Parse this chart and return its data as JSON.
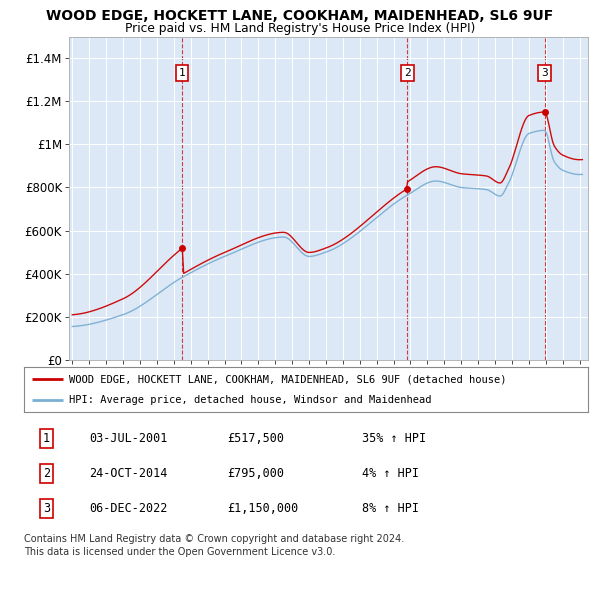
{
  "title": "WOOD EDGE, HOCKETT LANE, COOKHAM, MAIDENHEAD, SL6 9UF",
  "subtitle": "Price paid vs. HM Land Registry's House Price Index (HPI)",
  "xlim_start": 1994.8,
  "xlim_end": 2025.5,
  "ylim": [
    0,
    1500000
  ],
  "yticks": [
    0,
    200000,
    400000,
    600000,
    800000,
    1000000,
    1200000,
    1400000
  ],
  "ytick_labels": [
    "£0",
    "£200K",
    "£400K",
    "£600K",
    "£800K",
    "£1M",
    "£1.2M",
    "£1.4M"
  ],
  "xtick_years": [
    1995,
    1996,
    1997,
    1998,
    1999,
    2000,
    2001,
    2002,
    2003,
    2004,
    2005,
    2006,
    2007,
    2008,
    2009,
    2010,
    2011,
    2012,
    2013,
    2014,
    2015,
    2016,
    2017,
    2018,
    2019,
    2020,
    2021,
    2022,
    2023,
    2024,
    2025
  ],
  "sale_color": "#cc0000",
  "hpi_color": "#7bafd4",
  "vline_color": "#cc0000",
  "sale_dates": [
    2001.5,
    2014.82,
    2022.93
  ],
  "sale_prices": [
    517500,
    795000,
    1150000
  ],
  "sale_labels": [
    "1",
    "2",
    "3"
  ],
  "legend_sale": "WOOD EDGE, HOCKETT LANE, COOKHAM, MAIDENHEAD, SL6 9UF (detached house)",
  "legend_hpi": "HPI: Average price, detached house, Windsor and Maidenhead",
  "table_rows": [
    [
      "1",
      "03-JUL-2001",
      "£517,500",
      "35% ↑ HPI"
    ],
    [
      "2",
      "24-OCT-2014",
      "£795,000",
      "4% ↑ HPI"
    ],
    [
      "3",
      "06-DEC-2022",
      "£1,150,000",
      "8% ↑ HPI"
    ]
  ],
  "footer": "Contains HM Land Registry data © Crown copyright and database right 2024.\nThis data is licensed under the Open Government Licence v3.0.",
  "background_color": "#ffffff",
  "plot_bg_color": "#dce8f5"
}
